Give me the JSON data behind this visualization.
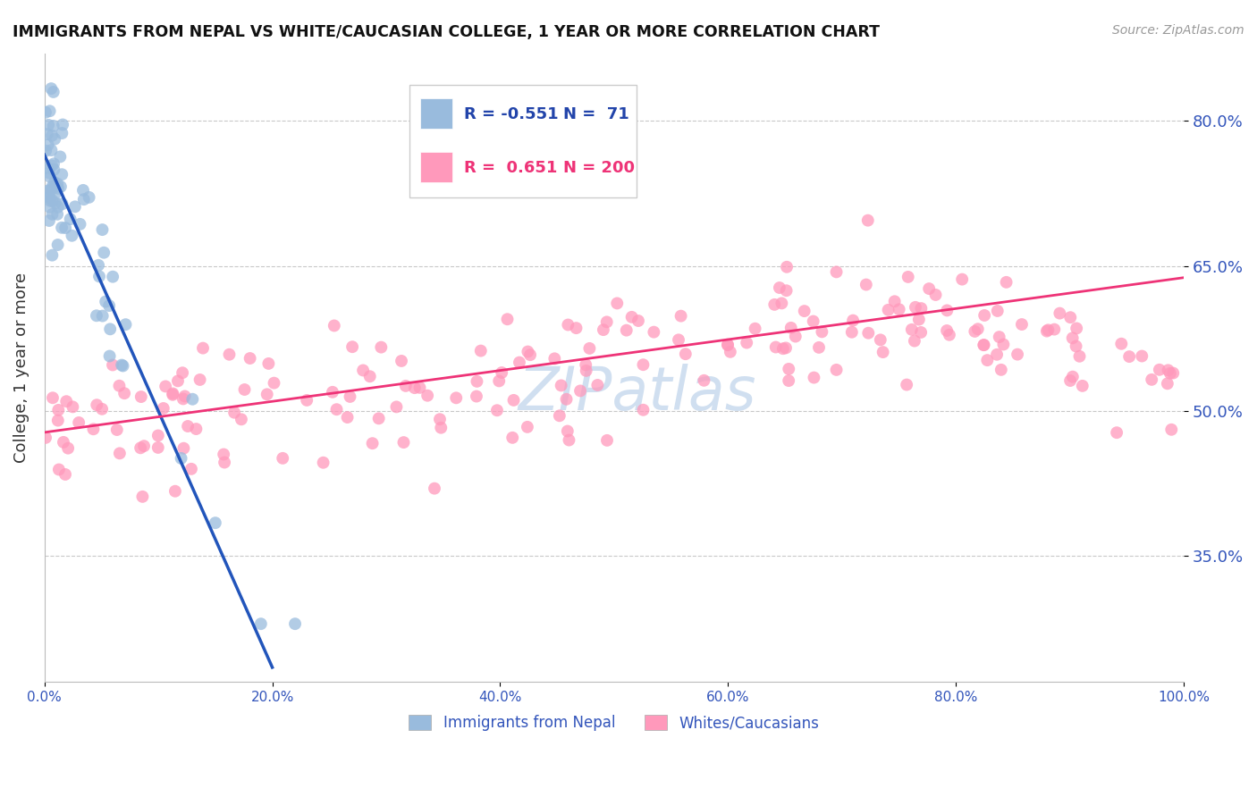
{
  "title": "IMMIGRANTS FROM NEPAL VS WHITE/CAUCASIAN COLLEGE, 1 YEAR OR MORE CORRELATION CHART",
  "source_text": "Source: ZipAtlas.com",
  "ylabel": "College, 1 year or more",
  "xlim": [
    0.0,
    1.0
  ],
  "ylim": [
    0.22,
    0.87
  ],
  "yticks": [
    0.35,
    0.5,
    0.65,
    0.8
  ],
  "ytick_labels": [
    "35.0%",
    "50.0%",
    "65.0%",
    "80.0%"
  ],
  "xticks": [
    0.0,
    0.2,
    0.4,
    0.6,
    0.8,
    1.0
  ],
  "xtick_labels": [
    "0.0%",
    "20.0%",
    "40.0%",
    "60.0%",
    "80.0%",
    "100.0%"
  ],
  "blue_color": "#99BBDD",
  "pink_color": "#FF99BB",
  "blue_line_color": "#2255BB",
  "pink_line_color": "#EE3377",
  "watermark_color": "#D0DFF0",
  "legend_blue_R": "-0.551",
  "legend_blue_N": "71",
  "legend_pink_R": "0.651",
  "legend_pink_N": "200",
  "legend_label_blue": "Immigrants from Nepal",
  "legend_label_pink": "Whites/Caucasians",
  "blue_line_x0": 0.0,
  "blue_line_y0": 0.765,
  "blue_line_x1": 0.2,
  "blue_line_y1": 0.235,
  "pink_line_x0": 0.0,
  "pink_line_y0": 0.478,
  "pink_line_x1": 1.0,
  "pink_line_y1": 0.638
}
